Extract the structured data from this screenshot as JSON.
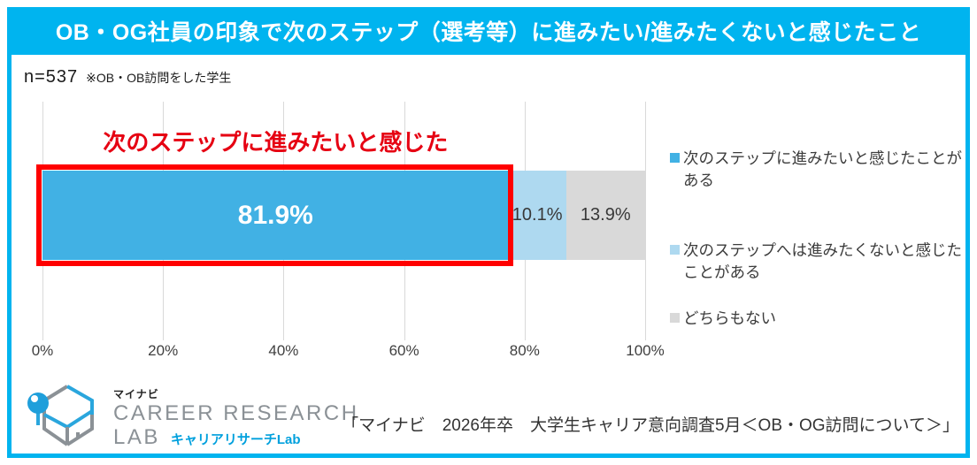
{
  "colors": {
    "accent_cyan": "#00b4ef",
    "bar_blue": "#41b1e4",
    "bar_lightblue": "#aed9f0",
    "bar_gray": "#d9d9d9",
    "annotation_red": "#e60012",
    "highlight_box_red": "#ff0000"
  },
  "header": {
    "title": "OB・OG社員の印象で次のステップ（選考等）に進みたい/進みたくないと感じたこと"
  },
  "meta": {
    "n_label": "n=537",
    "note": "※OB・OB訪問をした学生"
  },
  "annotation": {
    "text": "次のステップに進みたいと感じた"
  },
  "chart_data": {
    "type": "bar",
    "orientation": "horizontal",
    "stacked": true,
    "title": "OB・OG社員の印象で次のステップ（選考等）に進みたい/進みたくないと感じたこと",
    "series": [
      {
        "name": "次のステップに進みたいと感じたことがある",
        "value": 81.9,
        "label": "81.9%",
        "color": "#41b1e4"
      },
      {
        "name": "次のステップへは進みたくないと感じたことがある",
        "value": 10.1,
        "label": "10.1%",
        "color": "#aed9f0"
      },
      {
        "name": "どちらもない",
        "value": 13.9,
        "label": "13.9%",
        "color": "#d9d9d9"
      }
    ],
    "x_ticks": [
      "0%",
      "20%",
      "40%",
      "60%",
      "80%",
      "100%"
    ],
    "xlim": [
      0,
      100
    ],
    "grid": true,
    "legend_position": "right",
    "highlight": {
      "segment_index": 0,
      "annotation": "次のステップに進みたいと感じた"
    }
  },
  "legend": {
    "items": [
      {
        "label": "次のステップに進みたいと感じたことがある",
        "color": "#41b1e4"
      },
      {
        "label": "次のステップへは進みたくないと感じたことがある",
        "color": "#aed9f0"
      },
      {
        "label": "どちらもない",
        "color": "#d9d9d9"
      }
    ]
  },
  "footer": {
    "logo": {
      "brand": "マイナビ",
      "line1": "CAREER RESEARCH",
      "line2": "LAB",
      "jp": "キャリアリサーチLab"
    },
    "source": "「マイナビ　2026年卒　大学生キャリア意向調査5月＜OB・OG訪問について＞」"
  }
}
